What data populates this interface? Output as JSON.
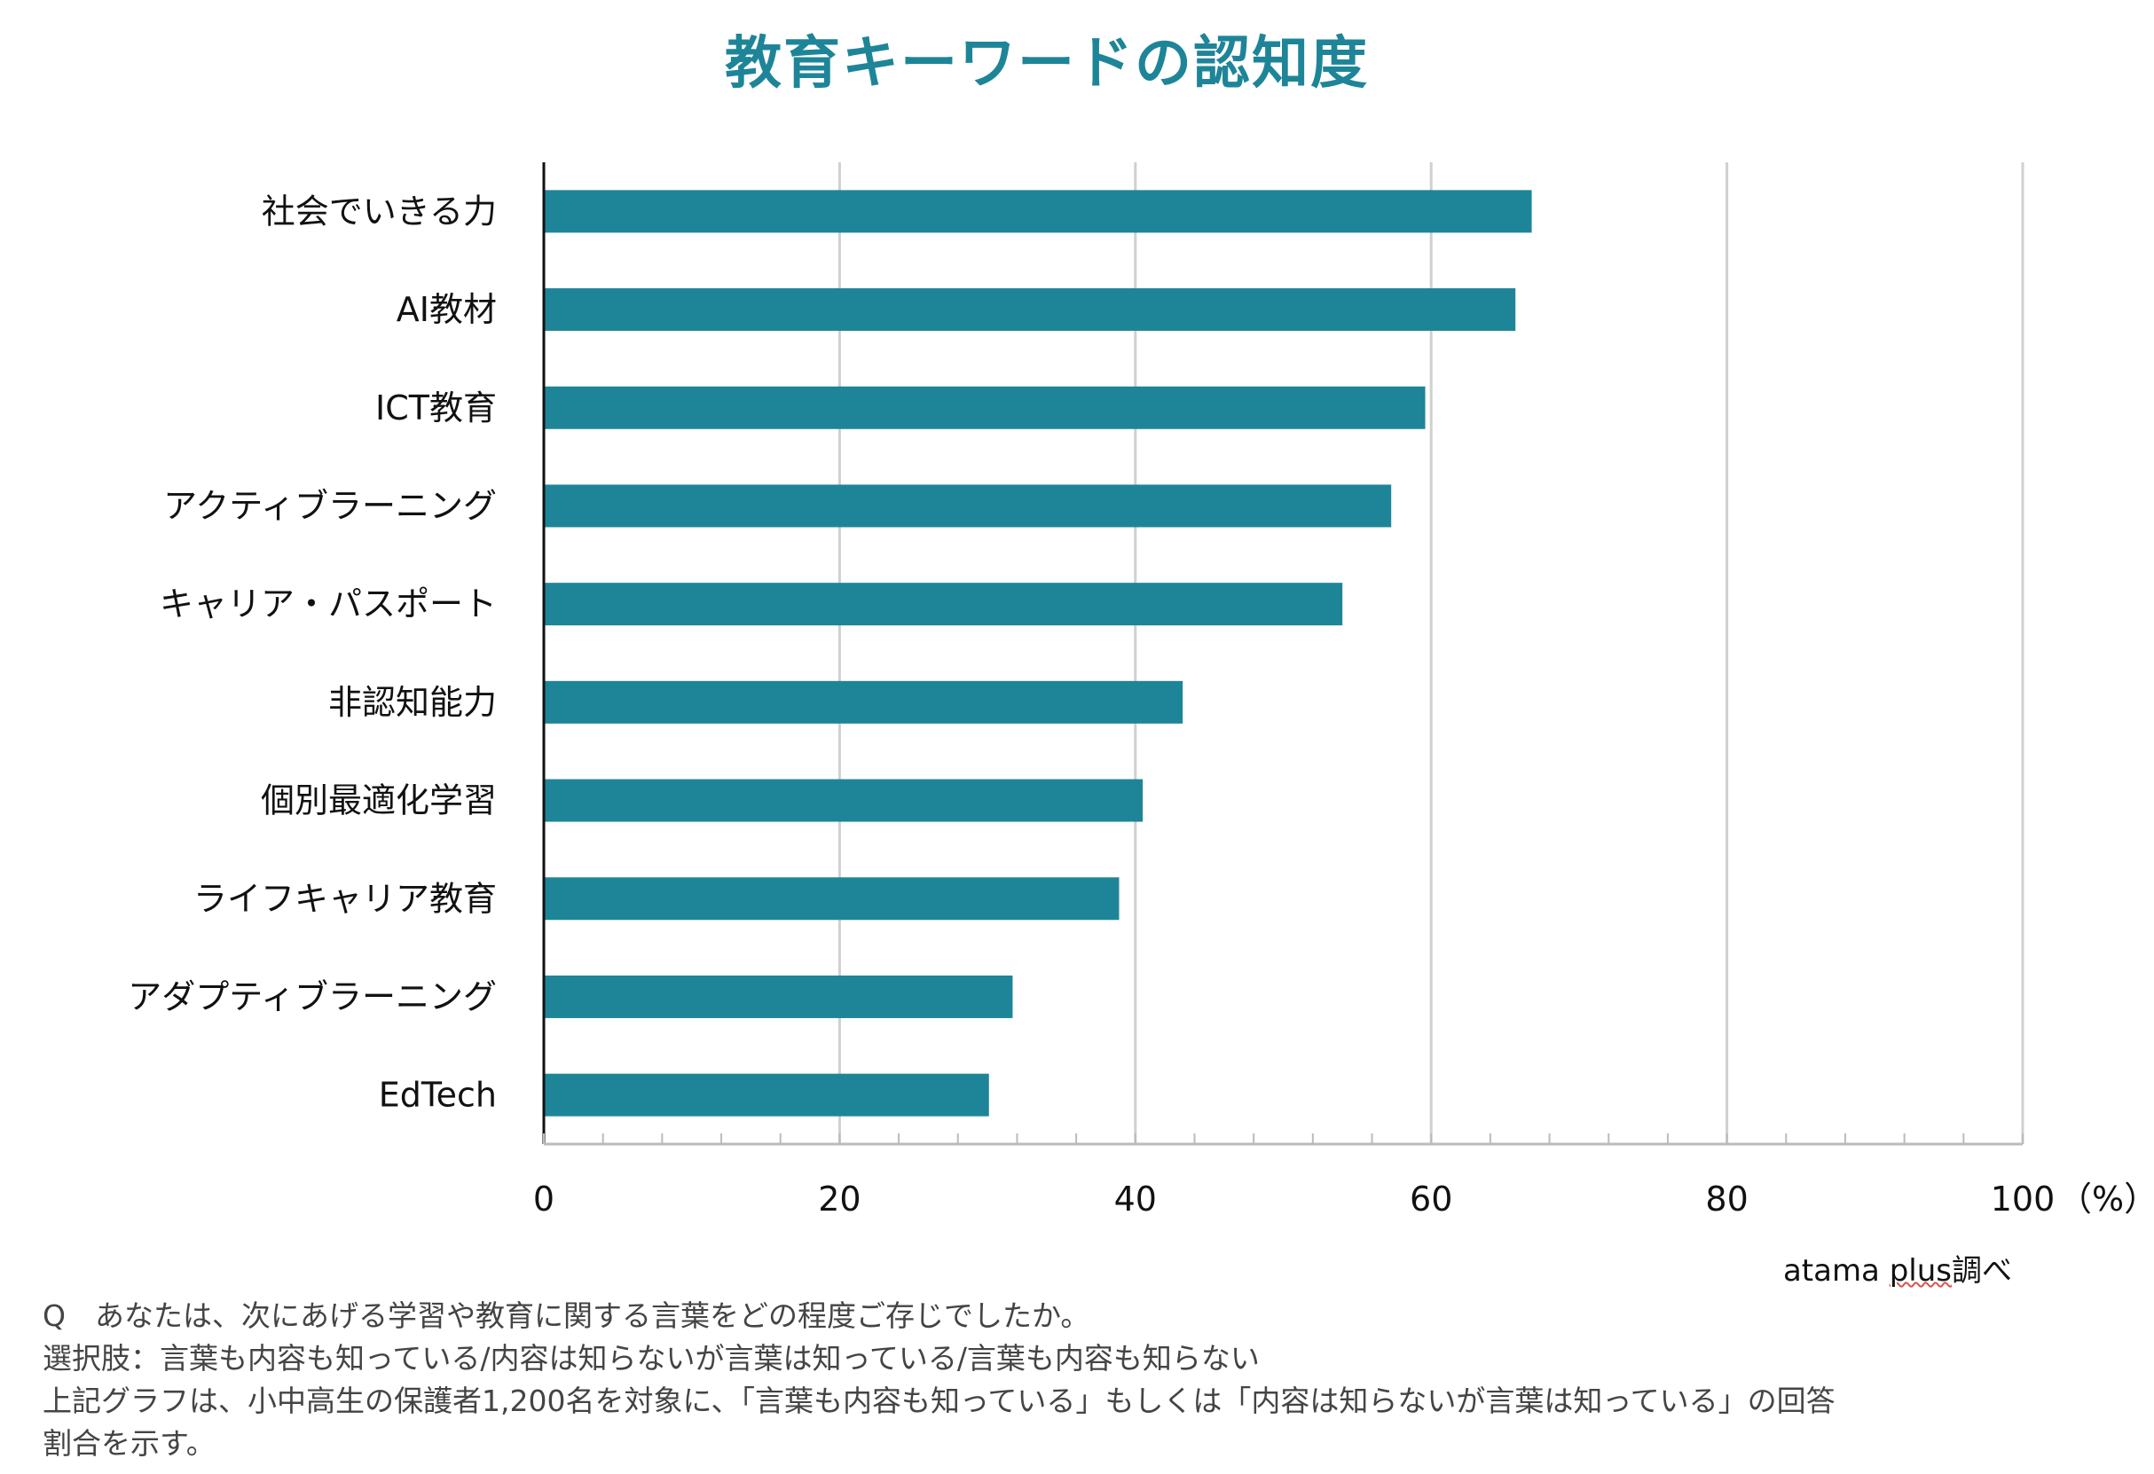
{
  "chart_data": {
    "type": "bar",
    "orientation": "horizontal",
    "title": "教育キーワードの認知度",
    "categories": [
      "社会でいきる力",
      "AI教材",
      "ICT教育",
      "アクティブラーニング",
      "キャリア・パスポート",
      "非認知能力",
      "個別最適化学習",
      "ライフキャリア教育",
      "アダプティブラーニング",
      "EdTech"
    ],
    "values": [
      66.8,
      65.7,
      59.6,
      57.3,
      54.0,
      43.2,
      40.5,
      38.9,
      31.7,
      30.1
    ],
    "xlim": [
      0,
      100
    ],
    "xticks": [
      0,
      20,
      40,
      60,
      80,
      100
    ],
    "xticks_labels": [
      "0",
      "20",
      "40",
      "60",
      "80",
      "100"
    ],
    "x_unit": "（%）",
    "bar_color": "#1e8598",
    "grid": true
  },
  "source": "atama plus調べ",
  "source_underlined": "plus",
  "notes": [
    "Q　あなたは、次にあげる学習や教育に関する言葉をどの程度ご存じでしたか。",
    "選択肢：言葉も内容も知っている/内容は知らないが言葉は知っている/言葉も内容も知らない",
    "上記グラフは、小中高生の保護者1,200名を対象に、「言葉も内容も知っている」もしくは「内容は知らないが言葉は知っている」の回答",
    "割合を示す。"
  ]
}
